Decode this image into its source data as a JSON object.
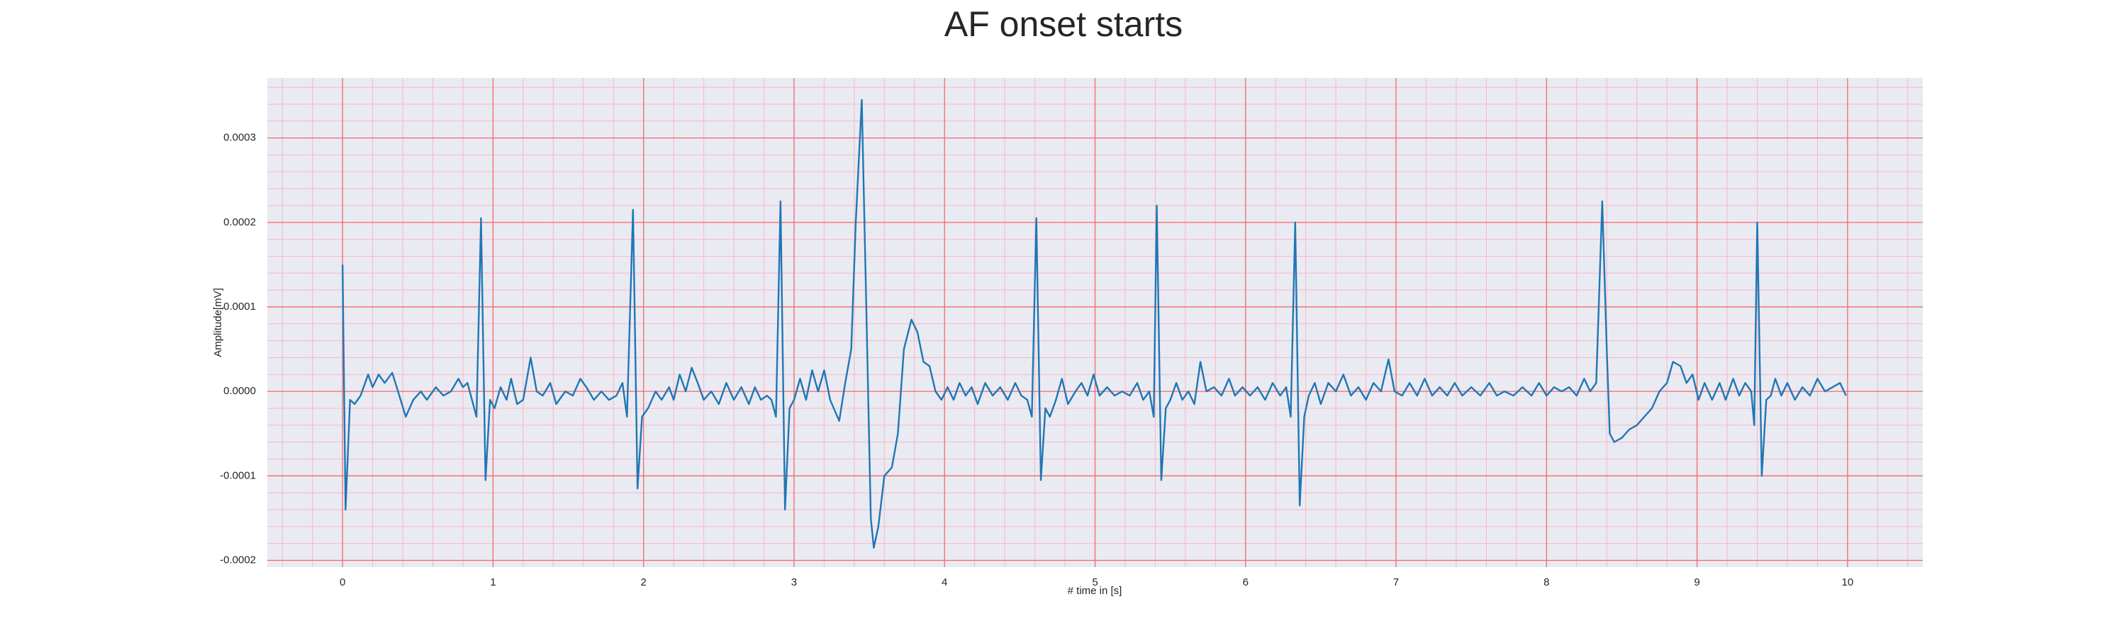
{
  "chart_data": {
    "type": "line",
    "title": "AF onset starts",
    "x_label": "# time in [s]",
    "y_label": "Amplitude[mV]",
    "color": "#1f77b4",
    "background": "#eaeaf2",
    "grid": true,
    "grid_color": "#f06a6a",
    "minor_grid": true,
    "minor_grid_color": "#f7b8c4",
    "minor_grid_divisions": 5,
    "xlim": [
      -0.5,
      10.5
    ],
    "ylim": [
      -0.000208,
      0.000371
    ],
    "xticks": [
      0,
      1,
      2,
      3,
      4,
      5,
      6,
      7,
      8,
      9,
      10
    ],
    "yticks": [
      -0.0002,
      -0.0001,
      {
        "value": 0,
        "label": "0.0000"
      },
      0.0001,
      0.0002,
      0.0003
    ],
    "x": [
      0,
      0.02,
      0.05,
      0.08,
      0.12,
      0.17,
      0.2,
      0.24,
      0.28,
      0.33,
      0.36,
      0.42,
      0.47,
      0.52,
      0.56,
      0.62,
      0.67,
      0.72,
      0.77,
      0.8,
      0.83,
      0.86,
      0.89,
      0.92,
      0.95,
      0.98,
      1.01,
      1.05,
      1.09,
      1.12,
      1.16,
      1.2,
      1.25,
      1.29,
      1.33,
      1.38,
      1.42,
      1.48,
      1.53,
      1.58,
      1.62,
      1.67,
      1.72,
      1.77,
      1.82,
      1.86,
      1.89,
      1.93,
      1.96,
      1.99,
      2.03,
      2.08,
      2.12,
      2.17,
      2.2,
      2.24,
      2.28,
      2.32,
      2.36,
      2.4,
      2.45,
      2.5,
      2.55,
      2.6,
      2.65,
      2.7,
      2.74,
      2.78,
      2.82,
      2.85,
      2.88,
      2.91,
      2.94,
      2.97,
      3.0,
      3.04,
      3.08,
      3.12,
      3.16,
      3.2,
      3.24,
      3.3,
      3.34,
      3.38,
      3.41,
      3.45,
      3.48,
      3.51,
      3.53,
      3.56,
      3.6,
      3.65,
      3.69,
      3.73,
      3.78,
      3.82,
      3.86,
      3.9,
      3.94,
      3.98,
      4.02,
      4.06,
      4.1,
      4.14,
      4.18,
      4.22,
      4.27,
      4.32,
      4.37,
      4.42,
      4.47,
      4.51,
      4.55,
      4.58,
      4.61,
      4.64,
      4.67,
      4.7,
      4.74,
      4.78,
      4.82,
      4.87,
      4.91,
      4.95,
      4.99,
      5.03,
      5.08,
      5.13,
      5.18,
      5.23,
      5.28,
      5.32,
      5.36,
      5.39,
      5.41,
      5.44,
      5.47,
      5.5,
      5.54,
      5.58,
      5.62,
      5.66,
      5.7,
      5.74,
      5.79,
      5.84,
      5.89,
      5.93,
      5.98,
      6.03,
      6.08,
      6.13,
      6.18,
      6.23,
      6.27,
      6.3,
      6.33,
      6.36,
      6.39,
      6.42,
      6.46,
      6.5,
      6.55,
      6.6,
      6.65,
      6.7,
      6.75,
      6.8,
      6.85,
      6.9,
      6.95,
      6.99,
      7.04,
      7.09,
      7.14,
      7.19,
      7.24,
      7.29,
      7.34,
      7.39,
      7.44,
      7.5,
      7.56,
      7.62,
      7.67,
      7.72,
      7.78,
      7.84,
      7.9,
      7.95,
      8.0,
      8.05,
      8.1,
      8.15,
      8.2,
      8.25,
      8.29,
      8.33,
      8.37,
      8.4,
      8.42,
      8.45,
      8.5,
      8.55,
      8.6,
      8.65,
      8.7,
      8.75,
      8.8,
      8.84,
      8.89,
      8.93,
      8.97,
      9.01,
      9.05,
      9.1,
      9.15,
      9.19,
      9.24,
      9.28,
      9.32,
      9.36,
      9.38,
      9.4,
      9.43,
      9.46,
      9.49,
      9.52,
      9.56,
      9.6,
      9.65,
      9.7,
      9.75,
      9.8,
      9.85,
      9.9,
      9.95,
      9.99
    ],
    "values": [
      0.00015,
      -0.00014,
      -1e-05,
      -1.5e-05,
      -5e-06,
      2e-05,
      5e-06,
      2e-05,
      1e-05,
      2.2e-05,
      5e-06,
      -3e-05,
      -1e-05,
      0,
      -1e-05,
      5e-06,
      -5e-06,
      0,
      1.5e-05,
      5e-06,
      1e-05,
      -1e-05,
      -3e-05,
      0.000205,
      -0.000105,
      -1e-05,
      -2e-05,
      5e-06,
      -1e-05,
      1.5e-05,
      -1.5e-05,
      -1e-05,
      4e-05,
      0,
      -5e-06,
      1e-05,
      -1.5e-05,
      0,
      -5e-06,
      1.5e-05,
      5e-06,
      -1e-05,
      0,
      -1e-05,
      -5e-06,
      1e-05,
      -3e-05,
      0.000215,
      -0.000115,
      -3e-05,
      -2e-05,
      0,
      -1e-05,
      5e-06,
      -1e-05,
      2e-05,
      0,
      2.8e-05,
      1e-05,
      -1e-05,
      0,
      -1.5e-05,
      1e-05,
      -1e-05,
      5e-06,
      -1.5e-05,
      5e-06,
      -1e-05,
      -5e-06,
      -1e-05,
      -3e-05,
      0.000225,
      -0.00014,
      -2e-05,
      -1e-05,
      1.5e-05,
      -1e-05,
      2.5e-05,
      0,
      2.5e-05,
      -1e-05,
      -3.5e-05,
      1e-05,
      5e-05,
      0.0002,
      0.000345,
      0.0001,
      -0.00015,
      -0.000185,
      -0.00016,
      -0.0001,
      -9e-05,
      -5e-05,
      5e-05,
      8.5e-05,
      7e-05,
      3.5e-05,
      3e-05,
      0,
      -1e-05,
      5e-06,
      -1e-05,
      1e-05,
      -5e-06,
      5e-06,
      -1.5e-05,
      1e-05,
      -5e-06,
      5e-06,
      -1e-05,
      1e-05,
      -5e-06,
      -1e-05,
      -3e-05,
      0.000205,
      -0.000105,
      -2e-05,
      -3e-05,
      -1e-05,
      1.5e-05,
      -1.5e-05,
      0,
      1e-05,
      -5e-06,
      2e-05,
      -5e-06,
      5e-06,
      -5e-06,
      0,
      -5e-06,
      1e-05,
      -1e-05,
      0,
      -3e-05,
      0.00022,
      -0.000105,
      -2e-05,
      -1e-05,
      1e-05,
      -1e-05,
      0,
      -1.5e-05,
      3.5e-05,
      0,
      5e-06,
      -5e-06,
      1.5e-05,
      -5e-06,
      5e-06,
      -5e-06,
      5e-06,
      -1e-05,
      1e-05,
      -5e-06,
      5e-06,
      -3e-05,
      0.0002,
      -0.000135,
      -3e-05,
      -5e-06,
      1e-05,
      -1.5e-05,
      1e-05,
      0,
      2e-05,
      -5e-06,
      5e-06,
      -1e-05,
      1e-05,
      0,
      3.8e-05,
      0,
      -5e-06,
      1e-05,
      -5e-06,
      1.5e-05,
      -5e-06,
      5e-06,
      -5e-06,
      1e-05,
      -5e-06,
      5e-06,
      -5e-06,
      1e-05,
      -5e-06,
      0,
      -5e-06,
      5e-06,
      -5e-06,
      1e-05,
      -5e-06,
      5e-06,
      0,
      5e-06,
      -5e-06,
      1.5e-05,
      0,
      1e-05,
      0.000225,
      5e-05,
      -5e-05,
      -6e-05,
      -5.5e-05,
      -4.5e-05,
      -4e-05,
      -3e-05,
      -2e-05,
      0,
      1e-05,
      3.5e-05,
      3e-05,
      1e-05,
      2e-05,
      -1e-05,
      1e-05,
      -1e-05,
      1e-05,
      -1e-05,
      1.5e-05,
      -5e-06,
      1e-05,
      0,
      -4e-05,
      0.0002,
      -0.0001,
      -1e-05,
      -5e-06,
      1.5e-05,
      -5e-06,
      1e-05,
      -1e-05,
      5e-06,
      -5e-06,
      1.5e-05,
      0,
      5e-06,
      1e-05,
      -5e-06
    ]
  }
}
